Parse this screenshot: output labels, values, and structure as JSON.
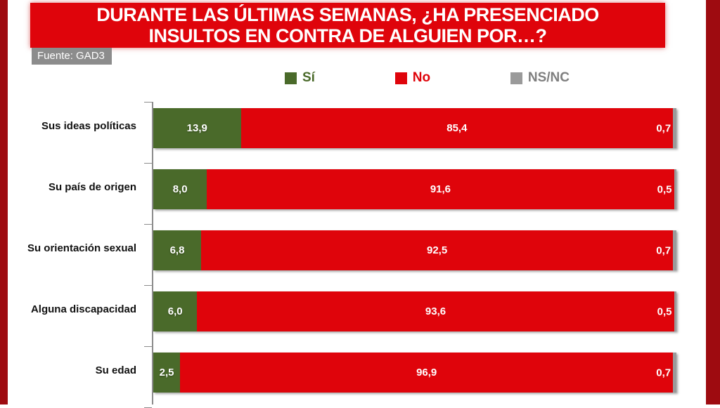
{
  "frame_color": "#9E0B10",
  "title": {
    "lines": [
      "DURANTE LAS ÚLTIMAS SEMANAS, ¿HA PRESENCIADO",
      "INSULTOS EN CONTRA DE ALGUIEN POR…?"
    ],
    "bg_color": "#DF040B",
    "text_color": "#FFFFFF"
  },
  "source": {
    "label": "Fuente: GAD3",
    "bg_color": "#8C8C8C",
    "text_color": "#FFFFFF"
  },
  "legend": {
    "items": [
      {
        "label": "Sí",
        "color": "#4A6A2A",
        "text_color": "#4A6A2A"
      },
      {
        "label": "No",
        "color": "#DF040B",
        "text_color": "#DF040B"
      },
      {
        "label": "NS/NC",
        "color": "#9A9A9A",
        "text_color": "#7F7F7F"
      }
    ]
  },
  "chart_data": {
    "type": "bar",
    "orientation": "horizontal",
    "stacked": true,
    "xlim": [
      0,
      100
    ],
    "unit": "percent",
    "decimal_separator": ",",
    "grid": false,
    "legend_position": "top",
    "categories": [
      "Sus ideas políticas",
      "Su país de origen",
      "Su orientación sexual",
      "Alguna discapacidad",
      "Su edad"
    ],
    "series": [
      {
        "name": "Sí",
        "color": "#4A6A2A",
        "values": [
          13.9,
          8.0,
          6.8,
          6.0,
          2.5
        ]
      },
      {
        "name": "No",
        "color": "#DF040B",
        "values": [
          85.4,
          91.6,
          92.5,
          93.6,
          96.9
        ]
      },
      {
        "name": "NS/NC",
        "color": "#9A9A9A",
        "values": [
          0.7,
          0.5,
          0.7,
          0.5,
          0.7
        ]
      }
    ]
  }
}
